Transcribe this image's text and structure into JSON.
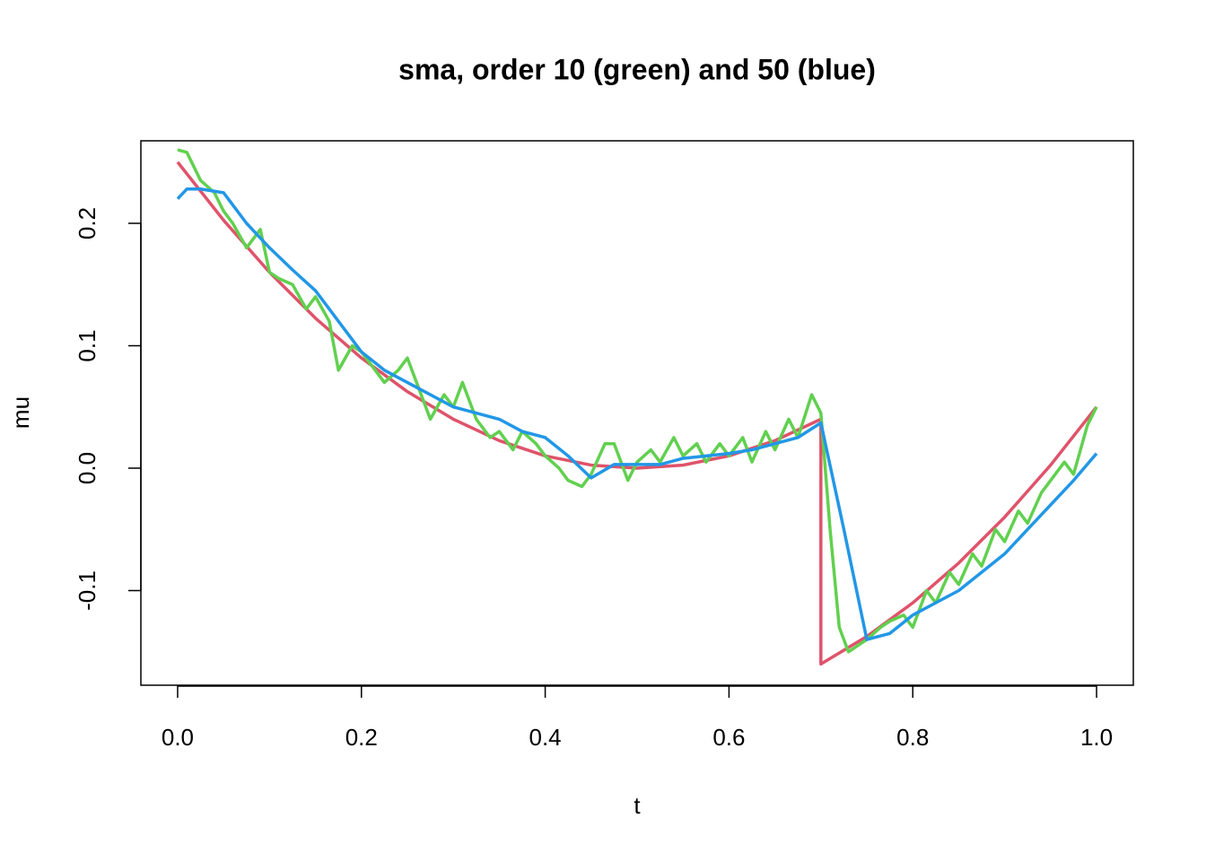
{
  "chart_data": {
    "type": "line",
    "title": "sma, order 10 (green) and 50 (blue)",
    "xlabel": "t",
    "ylabel": "mu",
    "xlim": [
      -0.04,
      1.04
    ],
    "ylim": [
      -0.1773,
      0.2674
    ],
    "xticks": [
      {
        "value": 0,
        "label": "0.0"
      },
      0.2,
      0.4,
      0.6,
      0.8,
      {
        "value": 1,
        "label": "1.0"
      }
    ],
    "yticks": [
      -0.1,
      {
        "value": 0,
        "label": "0.0"
      },
      0.1,
      0.2
    ],
    "grid": false,
    "series": [
      {
        "color": "#DF536B",
        "x": [
          0,
          0.05,
          0.1,
          0.15,
          0.2,
          0.25,
          0.3,
          0.35,
          0.4,
          0.45,
          0.5,
          0.55,
          0.6,
          0.65,
          0.7,
          0.7,
          0.75,
          0.8,
          0.85,
          0.9,
          0.95,
          1.0
        ],
        "values": [
          0.25,
          0.2025,
          0.16,
          0.1225,
          0.09,
          0.0625,
          0.04,
          0.0225,
          0.01,
          0.0025,
          0,
          0.0025,
          0.01,
          0.0225,
          0.04,
          -0.16,
          -0.1375,
          -0.11,
          -0.0775,
          -0.04,
          0.0025,
          0.05
        ]
      },
      {
        "color": "#61D04F",
        "x": [
          0,
          0.01,
          0.025,
          0.04,
          0.05,
          0.06,
          0.075,
          0.09,
          0.1,
          0.11,
          0.125,
          0.14,
          0.15,
          0.165,
          0.175,
          0.19,
          0.2,
          0.21,
          0.225,
          0.24,
          0.25,
          0.265,
          0.275,
          0.29,
          0.3,
          0.31,
          0.325,
          0.34,
          0.35,
          0.365,
          0.375,
          0.39,
          0.4,
          0.415,
          0.425,
          0.44,
          0.45,
          0.465,
          0.475,
          0.49,
          0.5,
          0.515,
          0.525,
          0.54,
          0.55,
          0.565,
          0.575,
          0.59,
          0.6,
          0.615,
          0.625,
          0.64,
          0.65,
          0.665,
          0.675,
          0.69,
          0.7,
          0.71,
          0.72,
          0.73,
          0.74,
          0.75,
          0.765,
          0.775,
          0.79,
          0.8,
          0.815,
          0.825,
          0.84,
          0.85,
          0.865,
          0.875,
          0.89,
          0.9,
          0.915,
          0.925,
          0.94,
          0.95,
          0.965,
          0.975,
          0.99,
          1.0
        ],
        "values": [
          0.26,
          0.258,
          0.235,
          0.225,
          0.21,
          0.2,
          0.18,
          0.195,
          0.16,
          0.155,
          0.15,
          0.13,
          0.14,
          0.12,
          0.08,
          0.1,
          0.095,
          0.085,
          0.07,
          0.08,
          0.09,
          0.06,
          0.04,
          0.06,
          0.05,
          0.07,
          0.04,
          0.025,
          0.03,
          0.015,
          0.03,
          0.02,
          0.01,
          0.0,
          -0.01,
          -0.015,
          -0.005,
          0.02,
          0.02,
          -0.01,
          0.005,
          0.015,
          0.005,
          0.025,
          0.01,
          0.02,
          0.005,
          0.02,
          0.01,
          0.025,
          0.005,
          0.03,
          0.015,
          0.04,
          0.025,
          0.06,
          0.045,
          -0.05,
          -0.13,
          -0.15,
          -0.145,
          -0.14,
          -0.13,
          -0.125,
          -0.12,
          -0.13,
          -0.1,
          -0.11,
          -0.085,
          -0.095,
          -0.07,
          -0.08,
          -0.05,
          -0.06,
          -0.035,
          -0.045,
          -0.02,
          -0.01,
          0.005,
          -0.005,
          0.035,
          0.05
        ]
      },
      {
        "color": "#2297E6",
        "x": [
          0,
          0.01,
          0.025,
          0.05,
          0.075,
          0.1,
          0.125,
          0.15,
          0.175,
          0.2,
          0.225,
          0.25,
          0.275,
          0.3,
          0.325,
          0.35,
          0.375,
          0.4,
          0.425,
          0.45,
          0.475,
          0.5,
          0.525,
          0.55,
          0.575,
          0.6,
          0.625,
          0.65,
          0.675,
          0.7,
          0.725,
          0.75,
          0.775,
          0.8,
          0.825,
          0.85,
          0.875,
          0.9,
          0.925,
          0.95,
          0.975,
          1.0
        ],
        "values": [
          0.22,
          0.228,
          0.228,
          0.225,
          0.2,
          0.18,
          0.162,
          0.145,
          0.12,
          0.095,
          0.08,
          0.07,
          0.06,
          0.05,
          0.045,
          0.04,
          0.03,
          0.025,
          0.01,
          -0.008,
          0.003,
          0.003,
          0.003,
          0.008,
          0.01,
          0.012,
          0.015,
          0.02,
          0.025,
          0.037,
          -0.05,
          -0.14,
          -0.135,
          -0.12,
          -0.11,
          -0.1,
          -0.085,
          -0.07,
          -0.05,
          -0.03,
          -0.01,
          0.012
        ]
      }
    ]
  }
}
